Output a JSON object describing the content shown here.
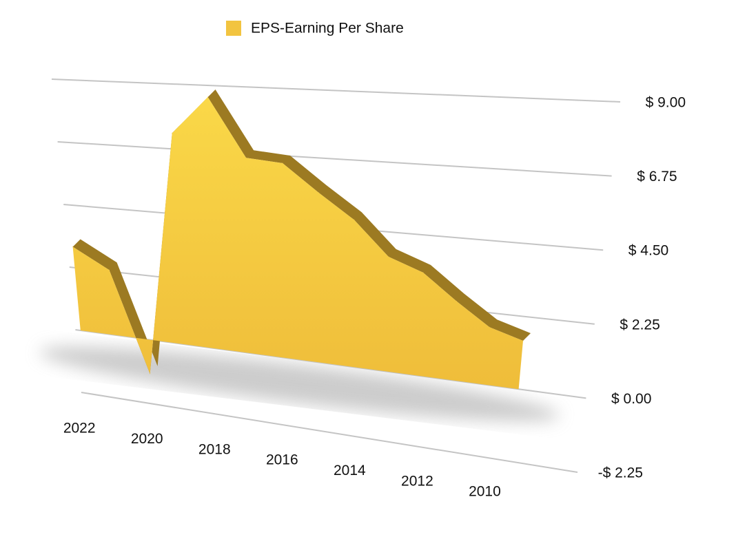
{
  "chart_data": {
    "type": "area",
    "categories": [
      "2022",
      null,
      "2020",
      null,
      "2018",
      null,
      "2016",
      null,
      "2014",
      null,
      "2012",
      null,
      "2010",
      null
    ],
    "series": [
      {
        "name": "EPS-Earning Per Share",
        "color": "#f2c440",
        "values": [
          3.0,
          2.3,
          -1.2,
          7.3,
          8.6,
          6.6,
          6.5,
          5.6,
          4.8,
          3.7,
          3.3,
          2.5,
          1.8,
          1.5
        ]
      }
    ],
    "ylim": [
      -2.25,
      9
    ],
    "yticks": [
      {
        "value": -2.25,
        "label": "-$ 2.25"
      },
      {
        "value": 0,
        "label": "$ 0.00"
      },
      {
        "value": 2.25,
        "label": "$ 2.25"
      },
      {
        "value": 4.5,
        "label": "$ 4.50"
      },
      {
        "value": 6.75,
        "label": "$ 6.75"
      },
      {
        "value": 9,
        "label": "$ 9.00"
      }
    ],
    "grid": true,
    "legend": "top"
  }
}
